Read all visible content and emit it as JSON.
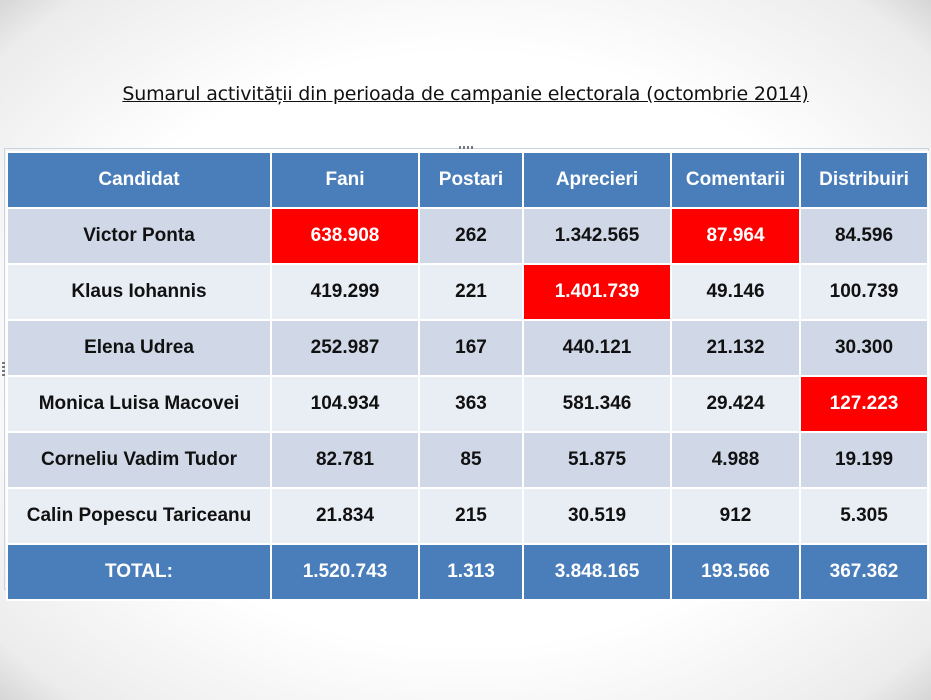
{
  "title": "Sumarul activității din perioada de campanie electorala (octombrie 2014)",
  "table": {
    "headers": [
      "Candidat",
      "Fani",
      "Postari",
      "Aprecieri",
      "Comentarii",
      "Distribuiri"
    ],
    "rows": [
      {
        "cells": [
          "Victor Ponta",
          "638.908",
          "262",
          "1.342.565",
          "87.964",
          "84.596"
        ],
        "highlight": [
          1,
          4
        ]
      },
      {
        "cells": [
          "Klaus Iohannis",
          "419.299",
          "221",
          "1.401.739",
          "49.146",
          "100.739"
        ],
        "highlight": [
          3
        ]
      },
      {
        "cells": [
          "Elena Udrea",
          "252.987",
          "167",
          "440.121",
          "21.132",
          "30.300"
        ],
        "highlight": []
      },
      {
        "cells": [
          "Monica Luisa Macovei",
          "104.934",
          "363",
          "581.346",
          "29.424",
          "127.223"
        ],
        "highlight": [
          5
        ]
      },
      {
        "cells": [
          "Corneliu Vadim Tudor",
          "82.781",
          "85",
          "51.875",
          "4.988",
          "19.199"
        ],
        "highlight": []
      },
      {
        "cells": [
          "Calin Popescu Tariceanu",
          "21.834",
          "215",
          "30.519",
          "912",
          "5.305"
        ],
        "highlight": []
      }
    ],
    "total": [
      "TOTAL:",
      "1.520.743",
      "1.313",
      "3.848.165",
      "193.566",
      "367.362"
    ]
  },
  "colors": {
    "header": "#4a7ebb",
    "row_odd": "#d0d8e8",
    "row_even": "#e9edf4",
    "highlight": "#fe0000"
  }
}
